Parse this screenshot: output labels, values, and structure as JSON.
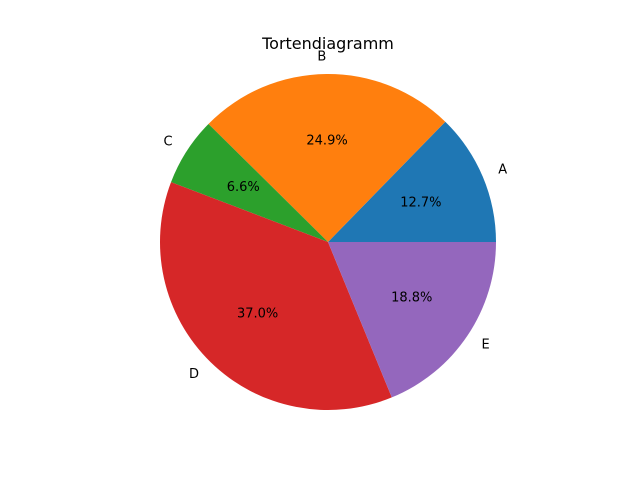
{
  "chart_data": {
    "type": "pie",
    "title": "Tortendiagramm",
    "categories": [
      "A",
      "B",
      "C",
      "D",
      "E"
    ],
    "values": [
      12.7,
      24.9,
      6.6,
      37.0,
      18.8
    ],
    "percent_labels": [
      "12.7%",
      "24.9%",
      "6.6%",
      "37.0%",
      "18.8%"
    ],
    "colors": [
      "#1f77b4",
      "#ff7f0e",
      "#2ca02c",
      "#d62728",
      "#9467bd"
    ],
    "start_angle_deg": 0,
    "direction": "counterclockwise"
  }
}
